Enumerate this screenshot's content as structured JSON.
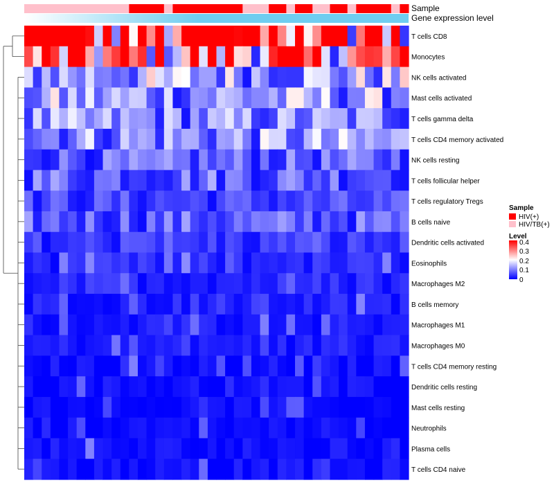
{
  "chart_data": {
    "type": "heatmap",
    "title": "",
    "annotation_tracks": [
      "Sample",
      "Gene expression level"
    ],
    "rows": [
      "T cells CD8",
      "Monocytes",
      "NK cells activated",
      "Mast cells activated",
      "T cells gamma delta",
      "T cells CD4 memory activated",
      "NK cells resting",
      "T cells follicular helper",
      "T cells regulatory  Tregs",
      "B cells naive",
      "Dendritic cells activated",
      "Eosinophils",
      "Macrophages M2",
      "B cells memory",
      "Macrophages M1",
      "Macrophages M0",
      "T cells CD4 memory resting",
      "Dendritic cells resting",
      "Mast cells resting",
      "Neutrophils",
      "Plasma cells",
      "T cells CD4 naive"
    ],
    "n_columns": 44,
    "sample_groups": [
      "HIV/TB(+)",
      "HIV/TB(+)",
      "HIV/TB(+)",
      "HIV/TB(+)",
      "HIV/TB(+)",
      "HIV/TB(+)",
      "HIV/TB(+)",
      "HIV/TB(+)",
      "HIV/TB(+)",
      "HIV/TB(+)",
      "HIV/TB(+)",
      "HIV/TB(+)",
      "HIV(+)",
      "HIV(+)",
      "HIV(+)",
      "HIV(+)",
      "HIV/TB(+)",
      "HIV(+)",
      "HIV(+)",
      "HIV(+)",
      "HIV(+)",
      "HIV(+)",
      "HIV(+)",
      "HIV(+)",
      "HIV(+)",
      "HIV/TB(+)",
      "HIV/TB(+)",
      "HIV/TB(+)",
      "HIV(+)",
      "HIV(+)",
      "HIV/TB(+)",
      "HIV(+)",
      "HIV(+)",
      "HIV/TB(+)",
      "HIV/TB(+)",
      "HIV(+)",
      "HIV(+)",
      "HIV/TB(+)",
      "HIV(+)",
      "HIV(+)",
      "HIV(+)",
      "HIV(+)",
      "HIV/TB(+)",
      "HIV(+)"
    ],
    "gene_expression_level": "uniform",
    "row_baseline_levels": [
      0.34,
      0.27,
      0.13,
      0.12,
      0.1,
      0.11,
      0.07,
      0.08,
      0.05,
      0.07,
      0.04,
      0.03,
      0.03,
      0.025,
      0.02,
      0.02,
      0.01,
      0.01,
      0.005,
      0.005,
      0.01,
      0.01
    ],
    "legend": {
      "sample_title": "Sample",
      "sample_entries": [
        {
          "label": "HIV(+)",
          "color": "#ff0000"
        },
        {
          "label": "HIV/TB(+)",
          "color": "#ffc0cb"
        }
      ],
      "level_title": "Level",
      "level_ticks": [
        "0.4",
        "0.3",
        "0.2",
        "0.1",
        "0"
      ],
      "level_range": [
        0,
        0.4
      ],
      "position": "right"
    },
    "colors": {
      "low": "#0000ff",
      "mid": "#ffffff",
      "high": "#ff0000",
      "gene_expression_track": "#6fcdf0",
      "gene_expression_track_start": "#ffffff"
    }
  }
}
